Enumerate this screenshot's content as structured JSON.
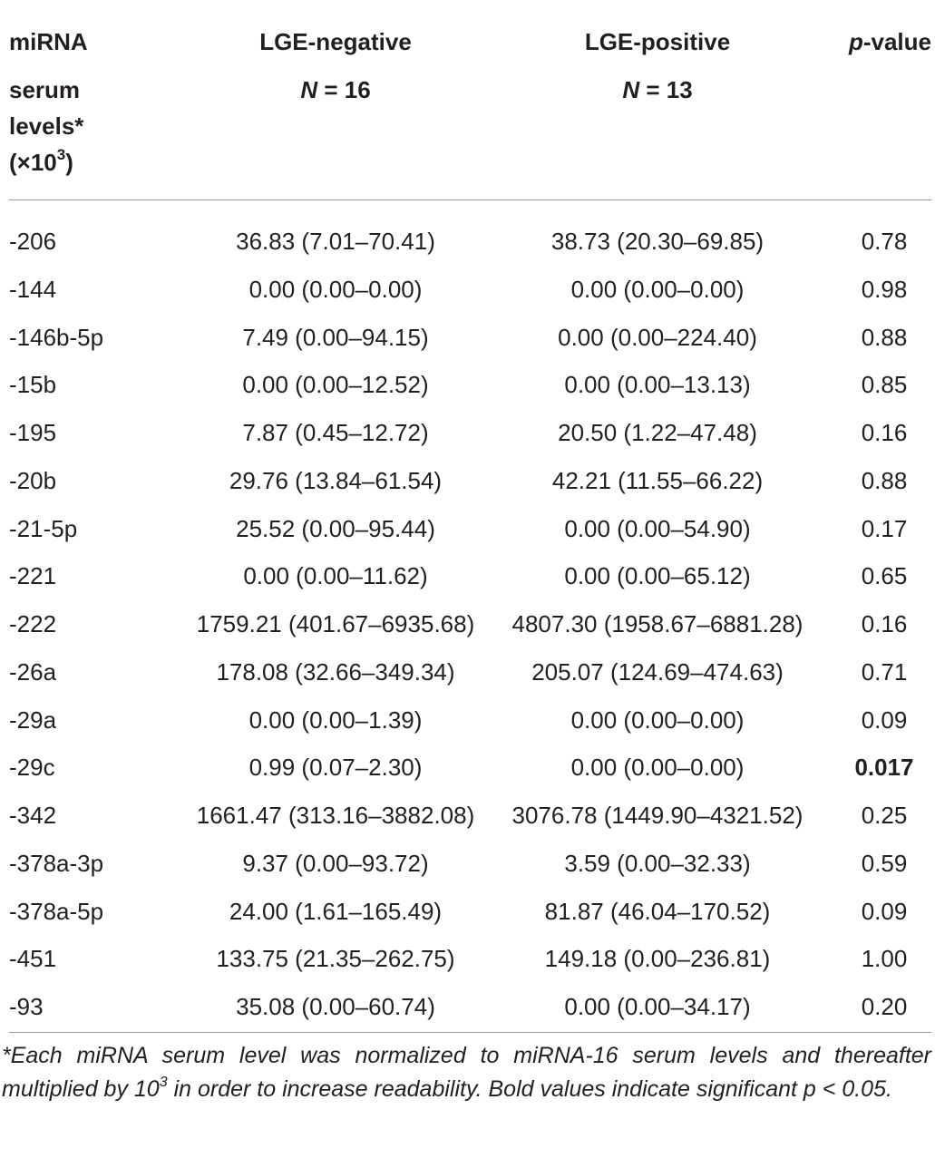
{
  "header": {
    "col1_line1": "miRNA",
    "col1_line2": "serum",
    "col1_line3": "levels*",
    "col1_line4_prefix": "(×10",
    "col1_line4_exp": "3",
    "col1_line4_suffix": ")",
    "col2_title": "LGE-negative",
    "col2_n_label": "N",
    "col2_n_value": " = 16",
    "col3_title": "LGE-positive",
    "col3_n_label": "N",
    "col3_n_value": " = 13",
    "col4_p_italic": "p",
    "col4_suffix": "-value"
  },
  "rows": [
    {
      "mirna": "-206",
      "neg": "36.83 (7.01–70.41)",
      "pos": "38.73 (20.30–69.85)",
      "p": "0.78"
    },
    {
      "mirna": "-144",
      "neg": "0.00 (0.00–0.00)",
      "pos": "0.00 (0.00–0.00)",
      "p": "0.98"
    },
    {
      "mirna": "-146b-5p",
      "neg": "7.49 (0.00–94.15)",
      "pos": "0.00 (0.00–224.40)",
      "p": "0.88"
    },
    {
      "mirna": "-15b",
      "neg": "0.00 (0.00–12.52)",
      "pos": "0.00 (0.00–13.13)",
      "p": "0.85"
    },
    {
      "mirna": "-195",
      "neg": "7.87 (0.45–12.72)",
      "pos": "20.50 (1.22–47.48)",
      "p": "0.16"
    },
    {
      "mirna": "-20b",
      "neg": "29.76 (13.84–61.54)",
      "pos": "42.21 (11.55–66.22)",
      "p": "0.88"
    },
    {
      "mirna": "-21-5p",
      "neg": "25.52 (0.00–95.44)",
      "pos": "0.00 (0.00–54.90)",
      "p": "0.17"
    },
    {
      "mirna": "-221",
      "neg": "0.00 (0.00–11.62)",
      "pos": "0.00 (0.00–65.12)",
      "p": "0.65"
    },
    {
      "mirna": "-222",
      "neg": "1759.21 (401.67–6935.68)",
      "pos": "4807.30 (1958.67–6881.28)",
      "p": "0.16"
    },
    {
      "mirna": "-26a",
      "neg": "178.08 (32.66–349.34)",
      "pos": "205.07 (124.69–474.63)",
      "p": "0.71"
    },
    {
      "mirna": "-29a",
      "neg": "0.00 (0.00–1.39)",
      "pos": "0.00 (0.00–0.00)",
      "p": "0.09"
    },
    {
      "mirna": "-29c",
      "neg": "0.99 (0.07–2.30)",
      "pos": "0.00 (0.00–0.00)",
      "p": "0.017",
      "significant": true
    },
    {
      "mirna": "-342",
      "neg": "1661.47 (313.16–3882.08)",
      "pos": "3076.78 (1449.90–4321.52)",
      "p": "0.25"
    },
    {
      "mirna": "-378a-3p",
      "neg": "9.37 (0.00–93.72)",
      "pos": "3.59 (0.00–32.33)",
      "p": "0.59"
    },
    {
      "mirna": "-378a-5p",
      "neg": "24.00 (1.61–165.49)",
      "pos": "81.87 (46.04–170.52)",
      "p": "0.09"
    },
    {
      "mirna": "-451",
      "neg": "133.75 (21.35–262.75)",
      "pos": "149.18 (0.00–236.81)",
      "p": "1.00"
    },
    {
      "mirna": "-93",
      "neg": "35.08 (0.00–60.74)",
      "pos": "0.00 (0.00–34.17)",
      "p": "0.20"
    }
  ],
  "footnote": {
    "part1": "*Each miRNA serum level was normalized to miRNA-16 serum levels and thereafter multiplied by 10",
    "exp": "3",
    "part2": " in order to increase readability. Bold values indicate significant p < 0.05."
  }
}
